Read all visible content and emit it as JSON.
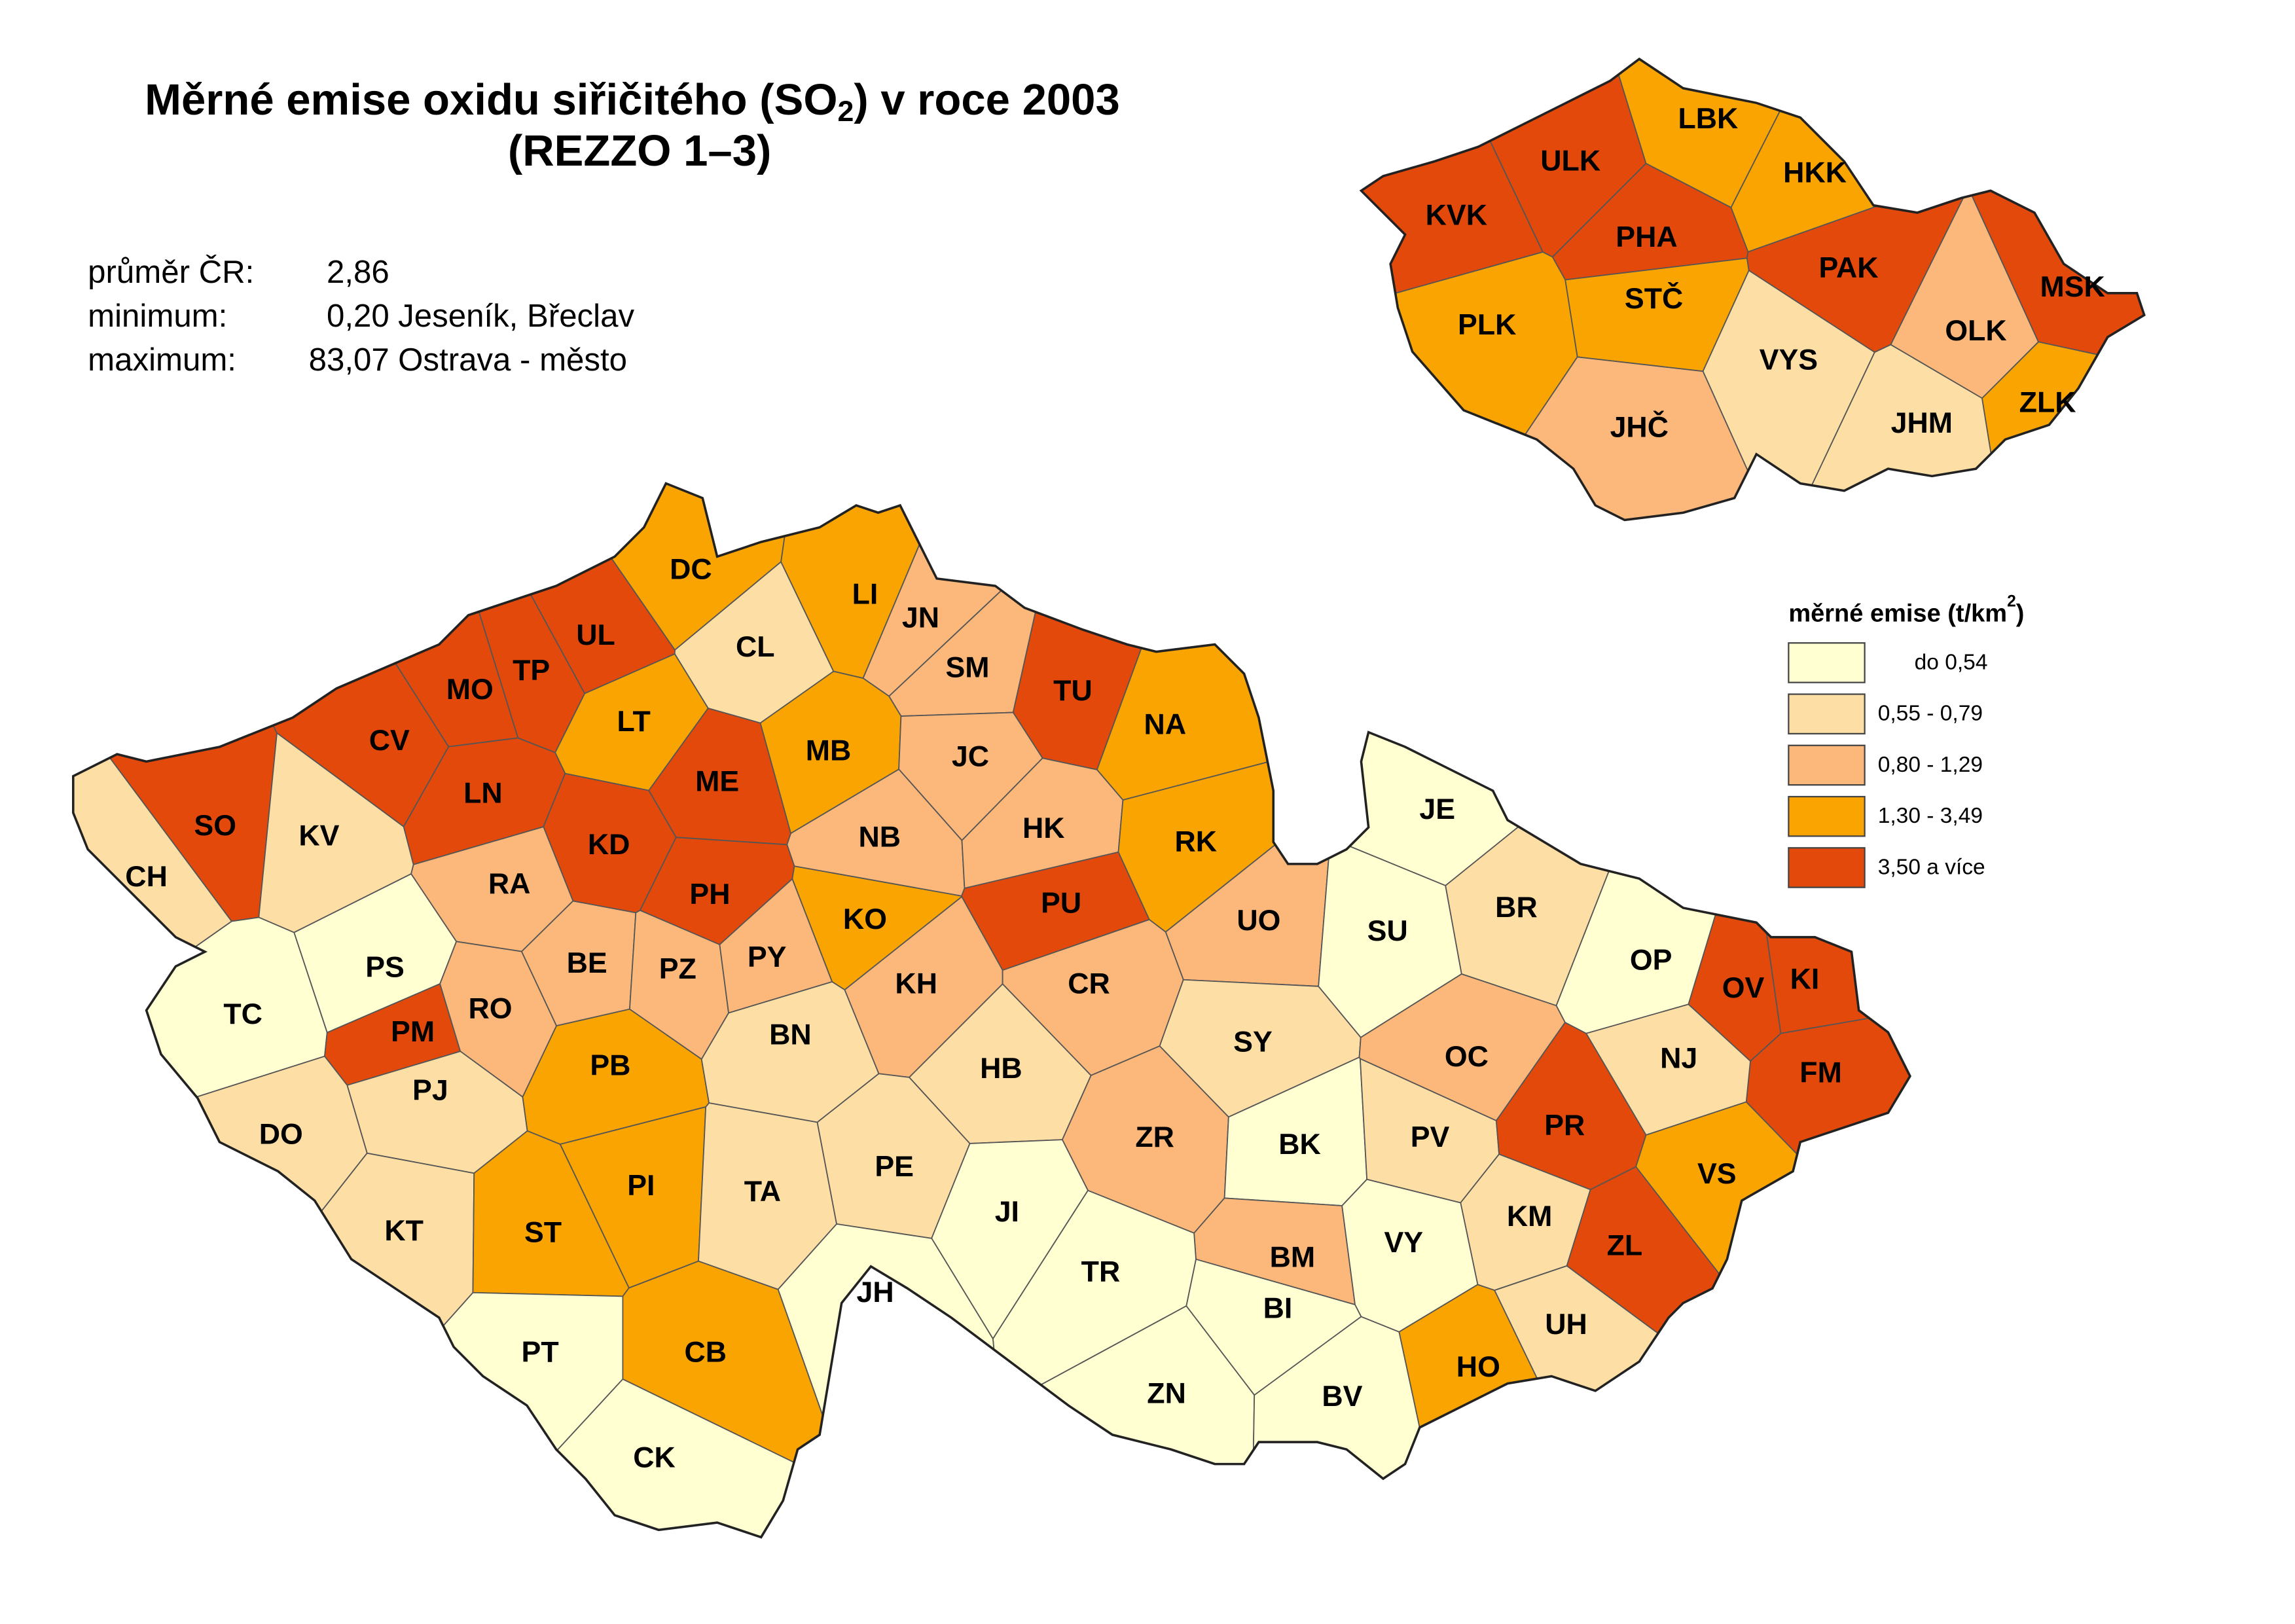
{
  "title": {
    "line1": [
      "Měrné emise oxidu siřičitého  (SO",
      "2",
      ") v roce 2003"
    ],
    "line2": "(REZZO 1–3)"
  },
  "stats": [
    {
      "label": "průměr ČR:",
      "value": "2,86",
      "place": ""
    },
    {
      "label": "minimum:",
      "value": "0,20",
      "place": "Jeseník, Břeclav"
    },
    {
      "label": "maximum:",
      "value": "83,07",
      "place": "Ostrava - město"
    }
  ],
  "legend": {
    "title": [
      "měrné emise (t/km",
      "2",
      ")"
    ],
    "classes": [
      {
        "label": "do 0,54",
        "color": "#ffffd2"
      },
      {
        "label": "0,55 - 0,79",
        "color": "#fddfa6"
      },
      {
        "label": "0,80 - 1,29",
        "color": "#fbb87a"
      },
      {
        "label": "1,30 - 3,49",
        "color": "#f9a400"
      },
      {
        "label": "3,50 a více",
        "color": "#e2490b"
      }
    ]
  },
  "districts": [
    {
      "label": "CH",
      "class": 1
    },
    {
      "label": "SO",
      "class": 4
    },
    {
      "label": "KV",
      "class": 1
    },
    {
      "label": "CV",
      "class": 4
    },
    {
      "label": "MO",
      "class": 4
    },
    {
      "label": "TP",
      "class": 4
    },
    {
      "label": "UL",
      "class": 4
    },
    {
      "label": "DC",
      "class": 3
    },
    {
      "label": "CL",
      "class": 1
    },
    {
      "label": "LI",
      "class": 3
    },
    {
      "label": "JN",
      "class": 2
    },
    {
      "label": "SM",
      "class": 2
    },
    {
      "label": "TU",
      "class": 4
    },
    {
      "label": "NA",
      "class": 3
    },
    {
      "label": "LT",
      "class": 3
    },
    {
      "label": "LN",
      "class": 4
    },
    {
      "label": "ME",
      "class": 4
    },
    {
      "label": "MB",
      "class": 3
    },
    {
      "label": "JC",
      "class": 2
    },
    {
      "label": "KD",
      "class": 4
    },
    {
      "label": "RA",
      "class": 2
    },
    {
      "label": "NB",
      "class": 2
    },
    {
      "label": "HK",
      "class": 2
    },
    {
      "label": "RK",
      "class": 3
    },
    {
      "label": "PH",
      "class": 4
    },
    {
      "label": "KO",
      "class": 3
    },
    {
      "label": "PU",
      "class": 4
    },
    {
      "label": "UO",
      "class": 2
    },
    {
      "label": "PS",
      "class": 0
    },
    {
      "label": "TC",
      "class": 0
    },
    {
      "label": "PM",
      "class": 4
    },
    {
      "label": "RO",
      "class": 2
    },
    {
      "label": "BE",
      "class": 2
    },
    {
      "label": "PZ",
      "class": 2
    },
    {
      "label": "PY",
      "class": 2
    },
    {
      "label": "KH",
      "class": 2
    },
    {
      "label": "CR",
      "class": 2
    },
    {
      "label": "SY",
      "class": 1
    },
    {
      "label": "PJ",
      "class": 1
    },
    {
      "label": "PB",
      "class": 3
    },
    {
      "label": "BN",
      "class": 1
    },
    {
      "label": "HB",
      "class": 1
    },
    {
      "label": "DO",
      "class": 1
    },
    {
      "label": "ZR",
      "class": 2
    },
    {
      "label": "BK",
      "class": 0
    },
    {
      "label": "PI",
      "class": 3
    },
    {
      "label": "TA",
      "class": 1
    },
    {
      "label": "PE",
      "class": 1
    },
    {
      "label": "JI",
      "class": 0
    },
    {
      "label": "KT",
      "class": 1
    },
    {
      "label": "ST",
      "class": 3
    },
    {
      "label": "BM",
      "class": 2
    },
    {
      "label": "BI",
      "class": 0
    },
    {
      "label": "TR",
      "class": 0
    },
    {
      "label": "JH",
      "class": 0
    },
    {
      "label": "PT",
      "class": 0
    },
    {
      "label": "CB",
      "class": 3
    },
    {
      "label": "CK",
      "class": 0
    },
    {
      "label": "ZN",
      "class": 0
    },
    {
      "label": "BV",
      "class": 0
    },
    {
      "label": "JE",
      "class": 0
    },
    {
      "label": "SU",
      "class": 0
    },
    {
      "label": "BR",
      "class": 1
    },
    {
      "label": "OP",
      "class": 0
    },
    {
      "label": "OV",
      "class": 4
    },
    {
      "label": "KI",
      "class": 4
    },
    {
      "label": "FM",
      "class": 4
    },
    {
      "label": "NJ",
      "class": 1
    },
    {
      "label": "OC",
      "class": 2
    },
    {
      "label": "PV",
      "class": 1
    },
    {
      "label": "PR",
      "class": 4
    },
    {
      "label": "VS",
      "class": 3
    },
    {
      "label": "KM",
      "class": 1
    },
    {
      "label": "ZL",
      "class": 4
    },
    {
      "label": "VY",
      "class": 0
    },
    {
      "label": "UH",
      "class": 1
    },
    {
      "label": "HO",
      "class": 3
    }
  ],
  "regions": [
    {
      "label": "KVK",
      "class": 4
    },
    {
      "label": "ULK",
      "class": 4
    },
    {
      "label": "LBK",
      "class": 3
    },
    {
      "label": "HKK",
      "class": 3
    },
    {
      "label": "PHA",
      "class": 4
    },
    {
      "label": "STČ",
      "class": 3
    },
    {
      "label": "PAK",
      "class": 4
    },
    {
      "label": "PLK",
      "class": 3
    },
    {
      "label": "VYS",
      "class": 1
    },
    {
      "label": "OLK",
      "class": 2
    },
    {
      "label": "MSK",
      "class": 4
    },
    {
      "label": "JHČ",
      "class": 2
    },
    {
      "label": "JHM",
      "class": 1
    },
    {
      "label": "ZLK",
      "class": 3
    }
  ]
}
